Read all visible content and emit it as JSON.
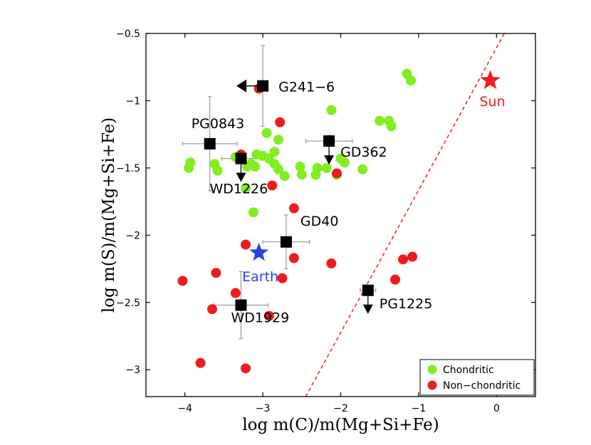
{
  "chart_data": {
    "type": "scatter",
    "title": "",
    "xlabel": "log m(C)/m(Mg+Si+Fe)",
    "ylabel": "log m(S)/m(Mg+Si+Fe)",
    "xlim": [
      -4.5,
      0.5
    ],
    "ylim": [
      -3.2,
      -0.5
    ],
    "xticks": [
      -4,
      -3,
      -2,
      -1,
      0
    ],
    "xtick_labels": [
      "−4",
      "−3",
      "−2",
      "−1",
      "0"
    ],
    "yticks": [
      -0.5,
      -1,
      -1.5,
      -2,
      -2.5,
      -3
    ],
    "ytick_labels": [
      "−0.5",
      "−1",
      "−1.5",
      "−2",
      "−2.5",
      "−3"
    ],
    "colors": {
      "chondritic": "#80ee20",
      "non_chondritic": "#ee1c1c",
      "white_dwarf": "#000000",
      "earth": "#2c3ee6",
      "sun": "#ee1c1c",
      "solar_line": "#ee1c1c"
    },
    "legend": {
      "position": "bottom-right",
      "entries": [
        "Chondritic",
        "Non−chondritic"
      ]
    },
    "series": [
      {
        "name": "Chondritic",
        "points": [
          [
            -1.15,
            -0.8
          ],
          [
            -1.1,
            -0.85
          ],
          [
            -1.5,
            -1.15
          ],
          [
            -1.38,
            -1.15
          ],
          [
            -1.35,
            -1.19
          ],
          [
            -2.12,
            -1.07
          ],
          [
            -2.15,
            -1.29
          ],
          [
            -2.0,
            -1.43
          ],
          [
            -1.95,
            -1.46
          ],
          [
            -1.72,
            -1.51
          ],
          [
            -2.05,
            -1.55
          ],
          [
            -2.18,
            -1.5
          ],
          [
            -2.3,
            -1.5
          ],
          [
            -2.32,
            -1.55
          ],
          [
            -2.5,
            -1.55
          ],
          [
            -2.52,
            -1.49
          ],
          [
            -2.95,
            -1.24
          ],
          [
            -2.8,
            -1.29
          ],
          [
            -2.85,
            -1.38
          ],
          [
            -3.0,
            -1.41
          ],
          [
            -3.08,
            -1.4
          ],
          [
            -2.92,
            -1.43
          ],
          [
            -2.85,
            -1.47
          ],
          [
            -2.8,
            -1.51
          ],
          [
            -2.72,
            -1.56
          ],
          [
            -3.1,
            -1.49
          ],
          [
            -3.15,
            -1.47
          ],
          [
            -3.2,
            -1.49
          ],
          [
            -3.35,
            -1.42
          ],
          [
            -3.62,
            -1.47
          ],
          [
            -3.58,
            -1.52
          ],
          [
            -3.93,
            -1.46
          ],
          [
            -3.95,
            -1.5
          ],
          [
            -3.22,
            -1.65
          ],
          [
            -3.12,
            -1.83
          ]
        ]
      },
      {
        "name": "Non−chondritic",
        "points": [
          [
            -3.05,
            -0.91
          ],
          [
            -2.78,
            -1.16
          ],
          [
            -3.28,
            -1.4
          ],
          [
            -2.88,
            -1.63
          ],
          [
            -2.6,
            -1.8
          ],
          [
            -2.05,
            -1.54
          ],
          [
            -2.6,
            -2.17
          ],
          [
            -2.12,
            -2.21
          ],
          [
            -2.75,
            -2.32
          ],
          [
            -3.22,
            -2.07
          ],
          [
            -4.03,
            -2.34
          ],
          [
            -3.6,
            -2.28
          ],
          [
            -3.35,
            -2.43
          ],
          [
            -3.65,
            -2.55
          ],
          [
            -2.92,
            -2.6
          ],
          [
            -3.8,
            -2.95
          ],
          [
            -3.22,
            -2.99
          ],
          [
            -1.2,
            -2.18
          ],
          [
            -1.08,
            -2.16
          ],
          [
            -1.3,
            -2.33
          ]
        ]
      }
    ],
    "white_dwarfs": [
      {
        "name": "G241−6",
        "x": -3.0,
        "y": -0.89,
        "xerr": 0,
        "yerr": 0.3,
        "limit": "left"
      },
      {
        "name": "PG0843",
        "x": -3.68,
        "y": -1.32,
        "xerr": 0.35,
        "yerr": 0.35,
        "limit": "none"
      },
      {
        "name": "WD1226",
        "x": -3.28,
        "y": -1.43,
        "xerr": 0.25,
        "yerr": 0,
        "limit": "down"
      },
      {
        "name": "GD362",
        "x": -2.15,
        "y": -1.3,
        "xerr": 0.3,
        "yerr": 0,
        "limit": "down"
      },
      {
        "name": "GD40",
        "x": -2.7,
        "y": -2.05,
        "xerr": 0.3,
        "yerr": 0.2,
        "limit": "none"
      },
      {
        "name": "WD1929",
        "x": -3.28,
        "y": -2.52,
        "xerr": 0.35,
        "yerr": 0.25,
        "limit": "none"
      },
      {
        "name": "PG1225",
        "x": -1.65,
        "y": -2.41,
        "xerr": 0.1,
        "yerr": 0,
        "limit": "down"
      }
    ],
    "earth": {
      "label": "Earth",
      "x": -3.05,
      "y": -2.13
    },
    "sun": {
      "label": "Sun",
      "x": -0.08,
      "y": -0.85
    },
    "solar_line": {
      "x": [
        -2.45,
        0.1
      ],
      "y": [
        -3.2,
        -0.5
      ],
      "style": "dashed"
    }
  }
}
